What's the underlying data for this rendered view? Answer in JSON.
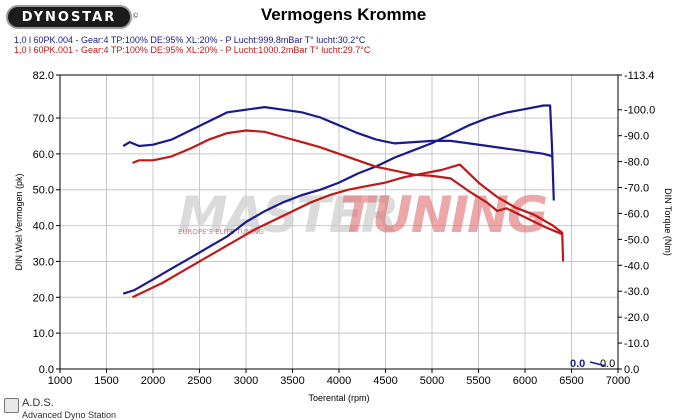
{
  "header": {
    "logo_text": "DYNOSTAR",
    "logo_mark": "©",
    "title": "Vermogens Kromme"
  },
  "legend": [
    {
      "text": "1,0 l 60PK.004 - Gear:4 TP:100% DE:95% XL:20%      - P Lucht:999.8mBar T° lucht:30.2°C",
      "color": "#1a1a8c"
    },
    {
      "text": "1,0 l 60PK.001 - Gear:4 TP:100% DE:95% XL:20%    - P Lucht:1000.2mBar T° lucht:29.7°C",
      "color": "#c01818"
    }
  ],
  "footer": {
    "brand": "A.D.S.",
    "sub": "Advanced Dyno Station"
  },
  "watermark": {
    "part1": "MASTER",
    "part2": "TUNING",
    "sub": "EUROPE'S ELITE TUNING"
  },
  "readouts": {
    "left": "0.0",
    "right": "0.0"
  },
  "chart_data": {
    "type": "line",
    "title": "Vermogens Kromme",
    "xlabel": "Toerental (rpm)",
    "ylabel": "DIN Wiel Vermogen (pk)",
    "y2label": "DIN Torque (Nm)",
    "xlim": [
      1000,
      7000
    ],
    "ylim": [
      0,
      82
    ],
    "y2lim": [
      0,
      113.4
    ],
    "x_ticks": [
      1000,
      1500,
      2000,
      2500,
      3000,
      3500,
      4000,
      4500,
      5000,
      5500,
      6000,
      6500,
      7000
    ],
    "y_ticks": [
      "0.0",
      "10.0",
      "20.0",
      "30.0",
      "40.0",
      "50.0",
      "60.0",
      "70.0",
      "82.0"
    ],
    "y_tick_values": [
      0,
      10,
      20,
      30,
      40,
      50,
      60,
      70,
      82
    ],
    "y2_ticks": [
      "0.0",
      "-10.0",
      "-20.0",
      "-30.0",
      "-40.0",
      "-50.0",
      "-60.0",
      "-70.0",
      "-80.0",
      "-90.0",
      "-100.0",
      "-113.4"
    ],
    "y2_tick_values": [
      0,
      10,
      20,
      30,
      40,
      50,
      60,
      70,
      80,
      90,
      100,
      113.4
    ],
    "grid": true,
    "colors": {
      "blue": "#1a1a8c",
      "red": "#c01818",
      "grid": "#c8c8c8"
    },
    "series": [
      {
        "axis": "left",
        "color": "#1a1a8c",
        "x": [
          1680,
          1800,
          2000,
          2200,
          2400,
          2600,
          2800,
          3000,
          3200,
          3400,
          3600,
          3800,
          4000,
          4200,
          4400,
          4600,
          4800,
          5000,
          5200,
          5400,
          5600,
          5800,
          6000,
          6200,
          6270,
          6290,
          6310
        ],
        "y": [
          21,
          22,
          25,
          28,
          31,
          34,
          37,
          41,
          44,
          46.5,
          48.5,
          50,
          52,
          54.5,
          56.5,
          59,
          61,
          63,
          65.5,
          68,
          70,
          71.5,
          72.5,
          73.5,
          73.5,
          62,
          47
        ]
      },
      {
        "axis": "right",
        "color": "#1a1a8c",
        "x": [
          1680,
          1750,
          1850,
          2000,
          2200,
          2400,
          2600,
          2800,
          3000,
          3200,
          3400,
          3600,
          3800,
          4000,
          4200,
          4400,
          4600,
          4800,
          5000,
          5200,
          5400,
          5600,
          5800,
          6000,
          6200,
          6300
        ],
        "y": [
          86,
          87.5,
          86,
          86.5,
          88.5,
          92,
          95.5,
          99,
          100,
          101,
          100,
          99,
          97,
          94,
          91,
          88.5,
          87,
          87.5,
          88,
          88,
          87,
          86,
          85,
          84,
          83,
          82
        ]
      },
      {
        "axis": "left",
        "color": "#c01818",
        "x": [
          1780,
          1900,
          2100,
          2300,
          2500,
          2700,
          2900,
          3100,
          3300,
          3500,
          3700,
          3900,
          4100,
          4300,
          4500,
          4700,
          4900,
          5100,
          5300,
          5500,
          5700,
          5900,
          6100,
          6300,
          6400,
          6410
        ],
        "y": [
          20,
          21.5,
          24,
          27,
          30,
          33,
          36,
          39,
          41.5,
          44,
          46.5,
          48.5,
          50,
          51,
          52,
          53.5,
          54.5,
          55.5,
          57,
          52,
          48,
          45,
          43,
          40,
          38,
          30
        ]
      },
      {
        "axis": "right",
        "color": "#c01818",
        "x": [
          1780,
          1850,
          2000,
          2200,
          2400,
          2600,
          2800,
          3000,
          3200,
          3400,
          3600,
          3800,
          4000,
          4200,
          4400,
          4600,
          4800,
          5000,
          5200,
          5400,
          5600,
          5700,
          5800,
          6000,
          6200,
          6400,
          6410
        ],
        "y": [
          79.5,
          80.5,
          80.5,
          82,
          85,
          88.5,
          91,
          92,
          91.5,
          89.5,
          87.5,
          85.5,
          83,
          80.5,
          78,
          76.5,
          75,
          74.5,
          73.5,
          68.5,
          64,
          61,
          62,
          58.5,
          55,
          52,
          52
        ]
      }
    ]
  }
}
